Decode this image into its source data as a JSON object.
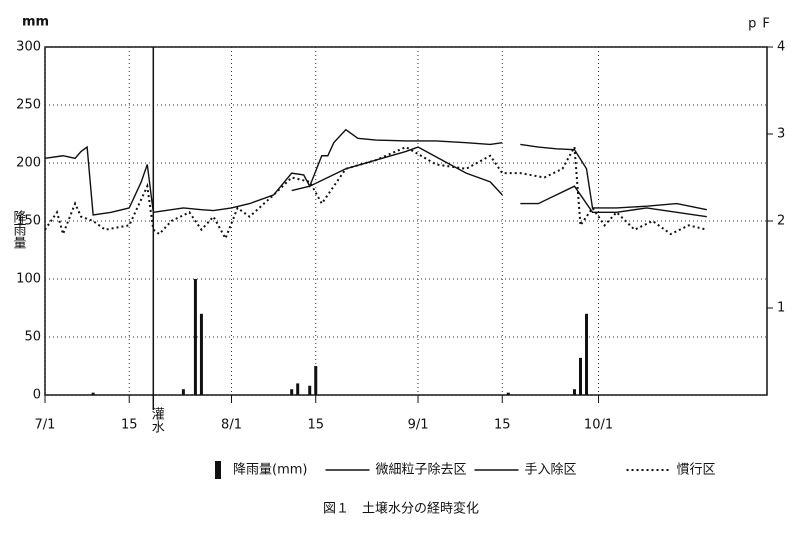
{
  "chart_data": {
    "type": "line",
    "title": "図１　土壌水分の経時変化",
    "y_label": "降雨量",
    "y_unit": "mm",
    "y2_label": "pF",
    "annotation": {
      "x": 18,
      "label": "灌水"
    },
    "xlim": [
      0,
      120
    ],
    "xticks": [
      {
        "value": 0,
        "label": "7/1"
      },
      {
        "value": 14,
        "label": "15"
      },
      {
        "value": 31,
        "label": "8/1"
      },
      {
        "value": 45,
        "label": "15"
      },
      {
        "value": 62,
        "label": "9/1"
      },
      {
        "value": 76,
        "label": "15"
      },
      {
        "value": 92,
        "label": "10/1"
      }
    ],
    "ylim": [
      0,
      300
    ],
    "yticks": [
      0,
      50,
      100,
      150,
      200,
      250,
      300
    ],
    "y2lim": [
      0,
      4
    ],
    "y2ticks": [
      1,
      2,
      3,
      4
    ],
    "grid": true,
    "bars": {
      "name": "降雨量(mm)",
      "color": "#111111",
      "x": [
        8,
        23,
        25,
        26,
        41,
        42,
        44,
        45,
        77,
        88,
        89,
        90
      ],
      "values": [
        2,
        5,
        100,
        70,
        5,
        10,
        8,
        25,
        2,
        5,
        32,
        70
      ]
    },
    "series": [
      {
        "name": "微細粒子除去区",
        "color": "#111111",
        "style": "solid",
        "axis": "y2",
        "x": [
          0,
          3,
          5,
          6,
          7,
          8,
          11,
          14,
          16,
          17,
          18,
          20,
          23,
          26,
          28,
          31,
          34,
          38,
          41,
          43,
          44,
          46,
          47,
          48,
          50,
          52,
          55,
          60,
          65,
          70,
          74,
          76,
          78,
          79,
          82,
          85,
          88,
          90,
          91,
          95,
          100,
          105,
          110
        ],
        "values": [
          2.72,
          2.75,
          2.72,
          2.8,
          2.85,
          2.07,
          2.1,
          2.15,
          2.45,
          2.65,
          2.1,
          2.12,
          2.15,
          2.13,
          2.12,
          2.15,
          2.2,
          2.3,
          2.55,
          2.53,
          2.4,
          2.75,
          2.75,
          2.9,
          3.05,
          2.95,
          2.93,
          2.92,
          2.92,
          2.9,
          2.88,
          2.9,
          null,
          2.88,
          2.85,
          2.83,
          2.82,
          2.6,
          2.15,
          2.15,
          2.17,
          2.2,
          2.13
        ]
      },
      {
        "name": "手入除区",
        "color": "#111111",
        "style": "solid",
        "axis": "y2",
        "x": [
          41,
          44,
          47,
          50,
          55,
          60,
          62,
          66,
          70,
          74,
          76,
          78,
          79,
          82,
          85,
          88,
          91,
          95,
          100,
          105,
          110
        ],
        "values": [
          2.35,
          2.4,
          2.5,
          2.6,
          2.7,
          2.8,
          2.85,
          2.7,
          2.55,
          2.45,
          2.3,
          null,
          2.2,
          2.2,
          2.3,
          2.4,
          2.1,
          2.1,
          2.15,
          2.1,
          2.05
        ]
      },
      {
        "name": "慣行区",
        "color": "#111111",
        "style": "dotted",
        "axis": "y2",
        "x": [
          0,
          2,
          3,
          5,
          6,
          8,
          10,
          14,
          16,
          17,
          18,
          19,
          21,
          24,
          26,
          28,
          30,
          32,
          34,
          38,
          41,
          44,
          46,
          50,
          55,
          60,
          65,
          70,
          74,
          76,
          79,
          83,
          86,
          88,
          89,
          91,
          93,
          95,
          98,
          101,
          104,
          107,
          110
        ],
        "values": [
          1.9,
          2.1,
          1.85,
          2.2,
          2.05,
          2.0,
          1.9,
          1.95,
          2.25,
          2.4,
          1.9,
          1.85,
          2.0,
          2.1,
          1.9,
          2.05,
          1.8,
          2.15,
          2.05,
          2.3,
          2.5,
          2.45,
          2.2,
          2.6,
          2.7,
          2.85,
          2.65,
          2.6,
          2.75,
          2.55,
          2.55,
          2.5,
          2.6,
          2.85,
          1.95,
          2.15,
          1.95,
          2.1,
          1.9,
          2.0,
          1.85,
          1.95,
          1.9
        ]
      }
    ]
  }
}
